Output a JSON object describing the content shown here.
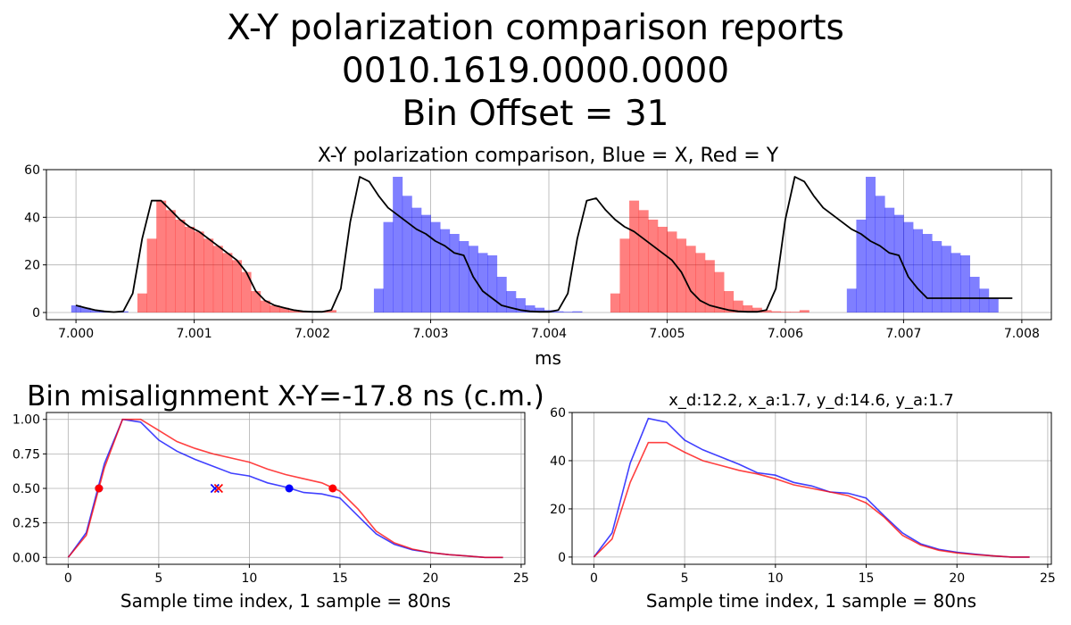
{
  "suptitle": {
    "line1": "X-Y polarization comparison reports",
    "line2": "0010.1619.0000.0000",
    "line3": "Bin Offset = 31"
  },
  "colors": {
    "x": "#0000ff",
    "y": "#ff0000",
    "envelope": "#000000",
    "grid": "#b0b0b0"
  },
  "chart_data": [
    {
      "id": "top",
      "type": "bar",
      "title": "X-Y polarization comparison, Blue = X, Red = Y",
      "xlabel": "ms",
      "ylabel": "",
      "xlim": [
        6.99975,
        7.00825
      ],
      "ylim": [
        -3,
        60
      ],
      "grid": true,
      "xticks": [
        "7.000",
        "7.001",
        "7.002",
        "7.003",
        "7.004",
        "7.005",
        "7.006",
        "7.007",
        "7.008"
      ],
      "xtick_values": [
        7.0,
        7.001,
        7.002,
        7.003,
        7.004,
        7.005,
        7.006,
        7.007,
        7.008
      ],
      "yticks": [
        0,
        20,
        40,
        60
      ],
      "bin_width_ms": 8e-05,
      "bars": [
        {
          "series": "X",
          "x0": 6.99996,
          "values": [
            3,
            2,
            1,
            0.5,
            0.2,
            0.5
          ]
        },
        {
          "series": "Y",
          "x0": 7.00052,
          "values": [
            8,
            31,
            47,
            43,
            39,
            36,
            34,
            31,
            28,
            25,
            22,
            17,
            9,
            5,
            3,
            2,
            1,
            0.5,
            0.3,
            0.3,
            1
          ]
        },
        {
          "series": "X",
          "x0": 7.00252,
          "values": [
            10,
            38,
            57,
            49,
            44,
            41,
            38,
            35,
            33,
            30,
            28,
            25,
            24,
            15,
            9,
            6,
            3,
            2,
            1,
            0.5,
            0.3,
            0.5
          ]
        },
        {
          "series": "Y",
          "x0": 7.00452,
          "values": [
            8,
            31,
            47,
            43,
            39,
            36,
            34,
            31,
            28,
            25,
            22,
            17,
            9,
            5,
            3,
            2,
            1,
            0.5,
            0.3,
            0.3,
            1
          ]
        },
        {
          "series": "X",
          "x0": 7.00652,
          "values": [
            10,
            39,
            57,
            49,
            44,
            41,
            38,
            35,
            33,
            30,
            28,
            25,
            24,
            15,
            10,
            6
          ]
        }
      ],
      "envelope": {
        "x": [
          7.0,
          7.00008,
          7.00016,
          7.00024,
          7.00032,
          7.0004,
          7.00048,
          7.00056,
          7.00064,
          7.00072,
          7.0008,
          7.00088,
          7.00096,
          7.00104,
          7.00112,
          7.0012,
          7.00128,
          7.00136,
          7.00144,
          7.00152,
          7.0016,
          7.00168,
          7.00176,
          7.00184,
          7.00192,
          7.002,
          7.00208,
          7.00216,
          7.00224,
          7.00232,
          7.0024,
          7.00248,
          7.00256,
          7.00264,
          7.00272,
          7.0028,
          7.00288,
          7.00296,
          7.00304,
          7.00312,
          7.0032,
          7.00328,
          7.00336,
          7.00344,
          7.00352,
          7.0036,
          7.00368,
          7.00376,
          7.00384,
          7.00392,
          7.004,
          7.00408,
          7.00416,
          7.00424,
          7.00432,
          7.0044,
          7.00448,
          7.00456,
          7.00464,
          7.00472,
          7.0048,
          7.00488,
          7.00496,
          7.00504,
          7.00512,
          7.0052,
          7.00528,
          7.00536,
          7.00544,
          7.00552,
          7.0056,
          7.00568,
          7.00576,
          7.00584,
          7.00592,
          7.006,
          7.00608,
          7.00616,
          7.00624,
          7.00632,
          7.0064,
          7.00648,
          7.00656,
          7.00664,
          7.00672,
          7.0068,
          7.00688,
          7.00696,
          7.00704,
          7.00712,
          7.0072,
          7.00728,
          7.00736,
          7.00744,
          7.00752,
          7.0076,
          7.00768,
          7.00776,
          7.00784,
          7.00792
        ],
        "y": [
          3,
          2,
          1,
          0.5,
          0.2,
          0.5,
          8,
          31,
          47,
          47,
          43,
          39,
          36,
          34,
          31,
          28,
          25,
          22,
          17,
          9,
          5,
          3,
          2,
          1,
          0.5,
          0.3,
          0.3,
          1,
          10,
          38,
          57,
          55,
          49,
          44,
          41,
          38,
          35,
          33,
          30,
          28,
          25,
          24,
          15,
          9,
          6,
          3,
          2,
          1,
          0.5,
          0.3,
          0.3,
          1,
          8,
          31,
          47,
          48,
          43,
          39,
          36,
          34,
          31,
          28,
          25,
          22,
          17,
          9,
          5,
          3,
          2,
          1,
          0.5,
          0.3,
          0.3,
          1,
          10,
          39,
          57,
          55,
          49,
          44,
          41,
          38,
          35,
          33,
          30,
          28,
          25,
          24,
          15,
          10,
          6,
          6,
          6,
          6,
          6,
          6,
          6,
          6,
          6,
          6
        ]
      }
    },
    {
      "id": "bottom-left",
      "type": "line",
      "title": "Bin misalignment X-Y=-17.8 ns (c.m.)",
      "xlabel": "Sample time index, 1 sample = 80ns",
      "ylabel": "",
      "xlim": [
        -1.2,
        25.2
      ],
      "ylim": [
        -0.05,
        1.05
      ],
      "grid": true,
      "xticks": [
        0,
        5,
        10,
        15,
        20,
        25
      ],
      "yticks": [
        "0.00",
        "0.25",
        "0.50",
        "0.75",
        "1.00"
      ],
      "ytick_values": [
        0,
        0.25,
        0.5,
        0.75,
        1.0
      ],
      "x": [
        0,
        1,
        2,
        3,
        4,
        5,
        6,
        7,
        8,
        9,
        10,
        11,
        12,
        13,
        14,
        15,
        16,
        17,
        18,
        19,
        20,
        21,
        22,
        23,
        24
      ],
      "series": [
        {
          "name": "X",
          "values": [
            0,
            0.18,
            0.68,
            1.0,
            0.98,
            0.85,
            0.77,
            0.71,
            0.66,
            0.61,
            0.59,
            0.54,
            0.51,
            0.47,
            0.46,
            0.43,
            0.3,
            0.17,
            0.095,
            0.055,
            0.035,
            0.02,
            0.01,
            0.0,
            0.0
          ]
        },
        {
          "name": "Y",
          "values": [
            0,
            0.16,
            0.65,
            1.0,
            1.0,
            0.92,
            0.84,
            0.79,
            0.75,
            0.72,
            0.69,
            0.64,
            0.6,
            0.57,
            0.54,
            0.48,
            0.35,
            0.19,
            0.105,
            0.06,
            0.035,
            0.02,
            0.01,
            0.0,
            0.0
          ]
        }
      ],
      "markers": [
        {
          "series": "X",
          "kind": "dot",
          "x": 1.7,
          "y": 0.5
        },
        {
          "series": "X",
          "kind": "dot",
          "x": 12.2,
          "y": 0.5
        },
        {
          "series": "X",
          "kind": "cross",
          "x": 8.1,
          "y": 0.5
        },
        {
          "series": "Y",
          "kind": "dot",
          "x": 1.7,
          "y": 0.5
        },
        {
          "series": "Y",
          "kind": "dot",
          "x": 14.6,
          "y": 0.5
        },
        {
          "series": "Y",
          "kind": "cross",
          "x": 8.3,
          "y": 0.5
        }
      ]
    },
    {
      "id": "bottom-right",
      "type": "line",
      "title": "x_d:12.2, x_a:1.7, y_d:14.6, y_a:1.7",
      "xlabel": "Sample time index, 1 sample = 80ns",
      "ylabel": "",
      "xlim": [
        -1.2,
        25.2
      ],
      "ylim": [
        -3,
        60
      ],
      "grid": true,
      "xticks": [
        0,
        5,
        10,
        15,
        20,
        25
      ],
      "yticks": [
        0,
        20,
        40,
        60
      ],
      "x": [
        0,
        1,
        2,
        3,
        4,
        5,
        6,
        7,
        8,
        9,
        10,
        11,
        12,
        13,
        14,
        15,
        16,
        17,
        18,
        19,
        20,
        21,
        22,
        23,
        24
      ],
      "series": [
        {
          "name": "X",
          "values": [
            0,
            10,
            39,
            57.5,
            56,
            48.5,
            44.5,
            41.5,
            38.5,
            35,
            34,
            31,
            29.5,
            27,
            26.5,
            24.5,
            17,
            10,
            5.5,
            3.2,
            2,
            1.2,
            0.5,
            0,
            0
          ]
        },
        {
          "name": "Y",
          "values": [
            0,
            7.5,
            31,
            47.5,
            47.5,
            43.5,
            40,
            38,
            36,
            34.5,
            32.5,
            30,
            28.5,
            27,
            25.5,
            22.5,
            16.5,
            9,
            5,
            2.8,
            1.7,
            1,
            0.5,
            0,
            0
          ]
        }
      ]
    }
  ]
}
